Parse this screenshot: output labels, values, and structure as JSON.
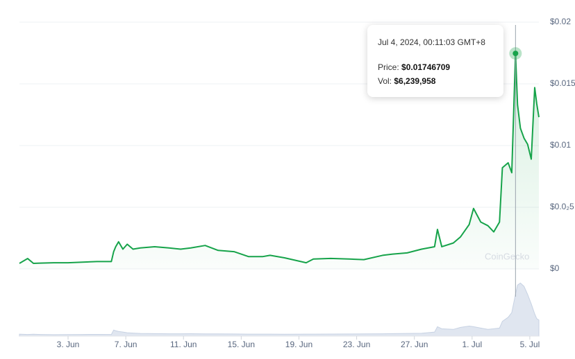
{
  "chart_data": {
    "type": "line",
    "x": [
      -0.37,
      0.2,
      0.6,
      1.1,
      2.0,
      3.0,
      4.0,
      5.0,
      6.0,
      6.16,
      6.3,
      6.5,
      6.8,
      7.1,
      7.5,
      8.0,
      9.0,
      10.0,
      10.8,
      11.5,
      12.5,
      13.4,
      14.5,
      15.5,
      16.5,
      17.0,
      18.0,
      19.5,
      20.0,
      21.2,
      22.5,
      23.5,
      24.8,
      25.5,
      26.5,
      27.5,
      28.4,
      28.6,
      28.9,
      29.7,
      30.2,
      30.8,
      31.1,
      31.6,
      32.1,
      32.5,
      32.9,
      33.1,
      33.5,
      33.75,
      34.01,
      34.15,
      34.35,
      34.6,
      34.85,
      35.1,
      35.34,
      35.48,
      35.63
    ],
    "series": [
      {
        "name": "Price",
        "color": "#16a34a",
        "values": [
          0.00045,
          0.00084,
          0.00045,
          0.00047,
          0.0005,
          0.0005,
          0.00055,
          0.0006,
          0.0006,
          0.0014,
          0.0018,
          0.0022,
          0.0016,
          0.002,
          0.0016,
          0.0017,
          0.0018,
          0.0017,
          0.0016,
          0.0017,
          0.0019,
          0.0015,
          0.0014,
          0.001,
          0.001,
          0.0011,
          0.0009,
          0.0005,
          0.0008,
          0.00085,
          0.0008,
          0.00075,
          0.0011,
          0.0012,
          0.0013,
          0.0016,
          0.0018,
          0.0032,
          0.0018,
          0.0021,
          0.0026,
          0.0036,
          0.0049,
          0.0038,
          0.0035,
          0.003,
          0.0038,
          0.0082,
          0.0086,
          0.0078,
          0.01746709,
          0.0133,
          0.0114,
          0.0106,
          0.0101,
          0.0089,
          0.0147,
          0.0134,
          0.0123
        ]
      },
      {
        "name": "Volume",
        "color": "#c7d2e3",
        "values": [
          300000,
          250000,
          280000,
          250000,
          220000,
          230000,
          250000,
          260000,
          250000,
          900000,
          800000,
          700000,
          600000,
          500000,
          450000,
          400000,
          380000,
          350000,
          350000,
          360000,
          340000,
          330000,
          320000,
          300000,
          300000,
          290000,
          280000,
          300000,
          300000,
          310000,
          320000,
          330000,
          350000,
          380000,
          400000,
          420000,
          600000,
          1400000,
          1100000,
          1000000,
          1300000,
          1500000,
          1400000,
          1200000,
          1000000,
          1100000,
          1200000,
          2200000,
          2800000,
          3500000,
          6239958,
          7600000,
          7900000,
          7400000,
          6200000,
          4800000,
          3300000,
          2600000,
          2400000
        ]
      }
    ],
    "xlim": [
      -0.37,
      35.63
    ],
    "xticks": [
      {
        "value": 3,
        "label": "3. Jun"
      },
      {
        "value": 7,
        "label": "7. Jun"
      },
      {
        "value": 11,
        "label": "11. Jun"
      },
      {
        "value": 15,
        "label": "15. Jun"
      },
      {
        "value": 19,
        "label": "19. Jun"
      },
      {
        "value": 23,
        "label": "23. Jun"
      },
      {
        "value": 27,
        "label": "27. Jun"
      },
      {
        "value": 31,
        "label": "1. Jul"
      },
      {
        "value": 35,
        "label": "5. Jul"
      }
    ],
    "ylim": [
      0,
      0.02
    ],
    "yticks": [
      {
        "value": 0.02,
        "label": "$0.02"
      },
      {
        "value": 0.015,
        "label": "$0.015"
      },
      {
        "value": 0.01,
        "label": "$0.01"
      },
      {
        "value": 0.005,
        "label": "$0.0₂5"
      },
      {
        "value": 0,
        "label": "$0"
      }
    ],
    "volume_ylim": [
      0,
      10000000
    ],
    "grid": true,
    "watermark": "CoinGecko",
    "tooltip": {
      "x": 34.01,
      "title": "Jul 4, 2024, 00:11:03 GMT+8",
      "price_label": "Price:",
      "price": 0.01746709,
      "price_text": "$0.01746709",
      "volume_label": "Vol:",
      "volume": 6239958,
      "volume_text": "$6,239,958"
    }
  }
}
